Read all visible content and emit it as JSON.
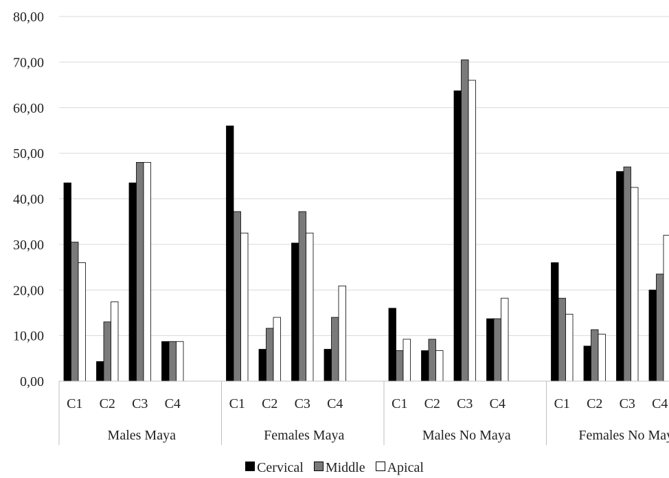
{
  "chart_data": {
    "type": "bar",
    "title": "",
    "xlabel": "",
    "ylabel": "",
    "ylim": [
      0,
      80
    ],
    "y_ticks": [
      "0,00",
      "10,00",
      "20,00",
      "30,00",
      "40,00",
      "50,00",
      "60,00",
      "70,00",
      "80,00"
    ],
    "grid": true,
    "legend_position": "bottom",
    "groups": [
      "Males Maya",
      "Females Maya",
      "Males No Maya",
      "Females No Maya"
    ],
    "categories": [
      "C1",
      "C2",
      "C3",
      "C4"
    ],
    "series": [
      {
        "name": "Cervical",
        "color": "#000000",
        "values": [
          [
            43.5,
            4.3,
            43.5,
            8.7
          ],
          [
            56.0,
            7.0,
            30.3,
            7.0
          ],
          [
            16.0,
            6.7,
            63.7,
            13.7
          ],
          [
            26.0,
            7.7,
            46.0,
            20.0
          ]
        ]
      },
      {
        "name": "Middle",
        "color": "#7a7a7a",
        "values": [
          [
            30.5,
            13.0,
            48.0,
            8.7
          ],
          [
            37.2,
            11.6,
            37.2,
            14.0
          ],
          [
            6.7,
            9.2,
            70.5,
            13.7
          ],
          [
            18.2,
            11.3,
            47.0,
            23.5
          ]
        ]
      },
      {
        "name": "Apical",
        "color": "#ffffff",
        "values": [
          [
            26.0,
            17.4,
            48.0,
            8.7
          ],
          [
            32.5,
            14.0,
            32.5,
            20.9
          ],
          [
            9.2,
            6.7,
            66.0,
            18.2
          ],
          [
            14.7,
            10.3,
            42.5,
            32.0
          ]
        ]
      }
    ]
  }
}
